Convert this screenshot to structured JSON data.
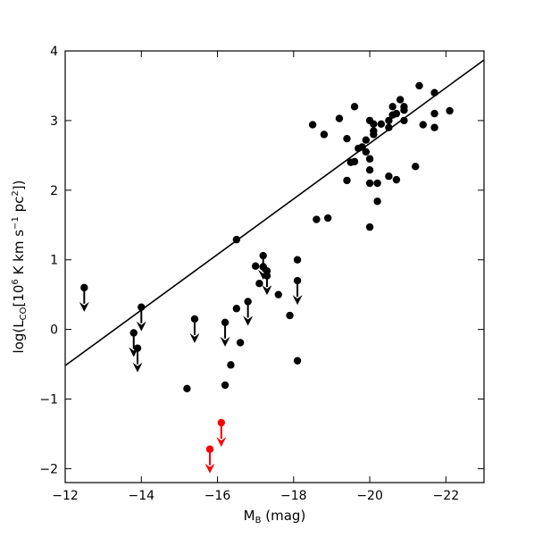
{
  "chart_data": {
    "type": "scatter",
    "title": "",
    "xlabel_main": "M",
    "xlabel_sub": "B",
    "xlabel_unit": " (mag)",
    "ylabel": {
      "prefix": "log(L",
      "sub": "CO",
      "unit_start": "[10",
      "unit_exp1": "6",
      "unit_mid": " K km s",
      "unit_exp2": "−1",
      "unit_pc": " pc",
      "unit_exp3": "2",
      "unit_end": "])"
    },
    "xlim": [
      -12,
      -23
    ],
    "ylim": [
      -2.2,
      4
    ],
    "xticks": [
      -12,
      -14,
      -16,
      -18,
      -20,
      -22
    ],
    "xtick_labels": [
      "−12",
      "−14",
      "−16",
      "−18",
      "−20",
      "−22"
    ],
    "yticks": [
      -2,
      -1,
      0,
      1,
      2,
      3,
      4
    ],
    "ytick_labels": [
      "−2",
      "−1",
      "0",
      "1",
      "2",
      "3",
      "4"
    ],
    "grid": false,
    "fit_line": {
      "x": [
        -12,
        -23
      ],
      "y": [
        -0.52,
        3.87
      ],
      "color": "#000000"
    },
    "colors": {
      "detection": "#000000",
      "special": "#ff0000"
    },
    "detections": [
      [
        -16.5,
        1.29
      ],
      [
        -15.2,
        -0.85
      ],
      [
        -16.2,
        -0.8
      ],
      [
        -16.35,
        -0.51
      ],
      [
        -16.6,
        -0.19
      ],
      [
        -16.5,
        0.3
      ],
      [
        -17.0,
        0.91
      ],
      [
        -17.2,
        0.9
      ],
      [
        -17.1,
        0.66
      ],
      [
        -17.3,
        0.77
      ],
      [
        -17.6,
        0.5
      ],
      [
        -17.9,
        0.2
      ],
      [
        -18.1,
        1.0
      ],
      [
        -18.1,
        -0.45
      ],
      [
        -18.6,
        1.58
      ],
      [
        -18.9,
        1.6
      ],
      [
        -18.5,
        2.94
      ],
      [
        -18.8,
        2.8
      ],
      [
        -19.2,
        3.03
      ],
      [
        -19.4,
        2.74
      ],
      [
        -19.4,
        2.14
      ],
      [
        -19.5,
        2.4
      ],
      [
        -19.6,
        2.41
      ],
      [
        -19.6,
        3.2
      ],
      [
        -19.7,
        2.6
      ],
      [
        -19.8,
        2.62
      ],
      [
        -19.9,
        2.72
      ],
      [
        -19.9,
        2.55
      ],
      [
        -20.0,
        3.0
      ],
      [
        -20.0,
        2.45
      ],
      [
        -20.0,
        2.29
      ],
      [
        -20.0,
        2.1
      ],
      [
        -20.0,
        1.47
      ],
      [
        -20.1,
        2.95
      ],
      [
        -20.1,
        2.85
      ],
      [
        -20.1,
        2.8
      ],
      [
        -20.2,
        2.1
      ],
      [
        -20.2,
        1.84
      ],
      [
        -20.3,
        2.95
      ],
      [
        -20.5,
        3.0
      ],
      [
        -20.5,
        2.9
      ],
      [
        -20.5,
        2.2
      ],
      [
        -20.6,
        3.2
      ],
      [
        -20.6,
        3.08
      ],
      [
        -20.7,
        3.1
      ],
      [
        -20.7,
        2.15
      ],
      [
        -20.8,
        3.3
      ],
      [
        -20.9,
        3.2
      ],
      [
        -20.9,
        3.15
      ],
      [
        -20.9,
        3.0
      ],
      [
        -21.2,
        2.34
      ],
      [
        -21.3,
        3.5
      ],
      [
        -21.4,
        2.94
      ],
      [
        -21.7,
        3.4
      ],
      [
        -21.7,
        3.1
      ],
      [
        -21.7,
        2.9
      ],
      [
        -22.1,
        3.14
      ]
    ],
    "upper_limits": [
      [
        -12.5,
        0.6
      ],
      [
        -13.8,
        -0.05
      ],
      [
        -13.9,
        -0.27
      ],
      [
        -14.0,
        0.32
      ],
      [
        -15.4,
        0.15
      ],
      [
        -16.2,
        0.1
      ],
      [
        -16.8,
        0.4
      ],
      [
        -17.2,
        1.06
      ],
      [
        -17.3,
        0.84
      ],
      [
        -18.1,
        0.7
      ]
    ],
    "special_upper_limits": [
      [
        -16.1,
        -1.34
      ],
      [
        -15.8,
        -1.72
      ]
    ]
  }
}
